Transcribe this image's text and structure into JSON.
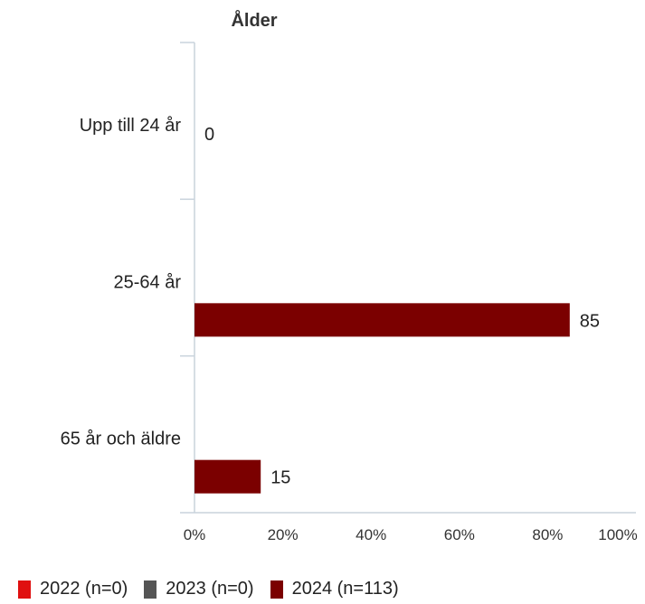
{
  "chart_data": {
    "type": "bar",
    "orientation": "horizontal",
    "title": "Ålder",
    "categories": [
      "Upp till 24 år",
      "25-64 år",
      "65 år och äldre"
    ],
    "series": [
      {
        "name": "2022 (n=0)",
        "color": "#e01010",
        "values": [
          null,
          null,
          null
        ]
      },
      {
        "name": "2023 (n=0)",
        "color": "#555555",
        "values": [
          null,
          null,
          null
        ]
      },
      {
        "name": "2024 (n=113)",
        "color": "#7b0000",
        "values": [
          0,
          85,
          15
        ]
      }
    ],
    "xlim": [
      0,
      100
    ],
    "x_ticks": [
      "0%",
      "20%",
      "40%",
      "60%",
      "80%",
      "100%"
    ],
    "legend_position": "bottom"
  }
}
